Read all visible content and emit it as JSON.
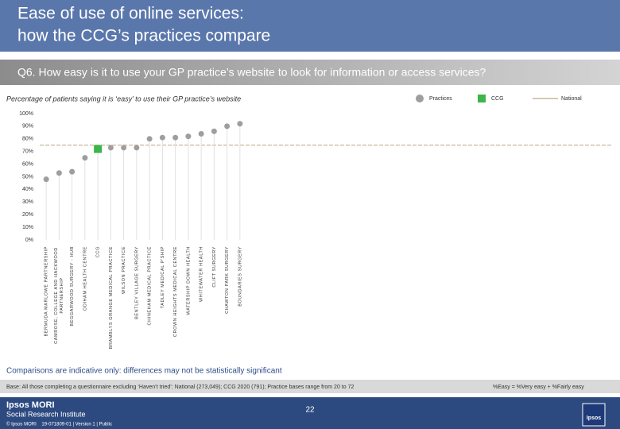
{
  "header": {
    "title_lines": [
      "Ease of use of online services:",
      "how the CCG’s practices compare"
    ],
    "question": "Q6. How easy is it to use your GP practice’s website to look for information or access services?"
  },
  "chart_data": {
    "type": "dot",
    "subtitle": "Percentage of patients saying it is ‘easy’ to use their GP practice’s website",
    "categories": [
      "BERMUDA MARLOWE PARTNERSHIP",
      "CAMROSE, COLLEGE AND HACKWOOD PARTNERSHIP",
      "BEGGARWOOD SURGERY - HUB",
      "ODIHAM HEALTH CENTRE",
      "CCG",
      "BRAMBLYS GRANGE MEDICAL PRACTICE",
      "WILSON PRACTICE",
      "BENTLEY VILLAGE SURGERY",
      "CHINEHAM MEDICAL PRACTICE",
      "TADLEY MEDICAL P'SHIP",
      "CROWN HEIGHTS MEDICAL CENTRE",
      "WATERSHIP DOWN HEALTH",
      "WHITEWATER HEALTH",
      "CLIFT SURGERY",
      "CHAWTON PARK SURGERY",
      "BOUNDARIES SURGERY"
    ],
    "series": [
      {
        "name": "Practices",
        "color": "#9e9e9e",
        "marker": "circle",
        "values": [
          48,
          53,
          54,
          65,
          null,
          73,
          73,
          73,
          80,
          81,
          81,
          82,
          84,
          86,
          90,
          92
        ]
      },
      {
        "name": "CCG",
        "color": "#3cb54a",
        "marker": "square",
        "values": [
          null,
          null,
          null,
          null,
          72,
          null,
          null,
          null,
          null,
          null,
          null,
          null,
          null,
          null,
          null,
          null
        ]
      }
    ],
    "reference_lines": [
      {
        "name": "National",
        "color": "#c8b89a",
        "value": 75
      }
    ],
    "ylim": [
      0,
      100
    ],
    "yticks": [
      {
        "value": 0,
        "label": "0%"
      },
      {
        "value": 10,
        "label": "10%"
      },
      {
        "value": 20,
        "label": "20%"
      },
      {
        "value": 30,
        "label": "30%"
      },
      {
        "value": 40,
        "label": "40%"
      },
      {
        "value": 50,
        "label": "50%"
      },
      {
        "value": 60,
        "label": "60%"
      },
      {
        "value": 70,
        "label": "70%"
      },
      {
        "value": 80,
        "label": "80%"
      },
      {
        "value": 90,
        "label": "90%"
      },
      {
        "value": 100,
        "label": "100%"
      }
    ],
    "droplines": true
  },
  "notes": {
    "comparison": "Comparisons are indicative only: differences may not be statistically significant",
    "base": "Base: All those completing a questionnaire excluding ‘Haven’t tried’: National (273,049); CCG 2020 (791); Practice bases range from 20 to 72",
    "definition": "%Easy = %Very easy + %Fairly easy"
  },
  "footer": {
    "page": "22",
    "brand": "Ipsos MORI",
    "institute": "Social Research Institute",
    "copyright": "© Ipsos MORI    19-071809-01 | Version 1 | Public",
    "logo": "Ipsos"
  }
}
